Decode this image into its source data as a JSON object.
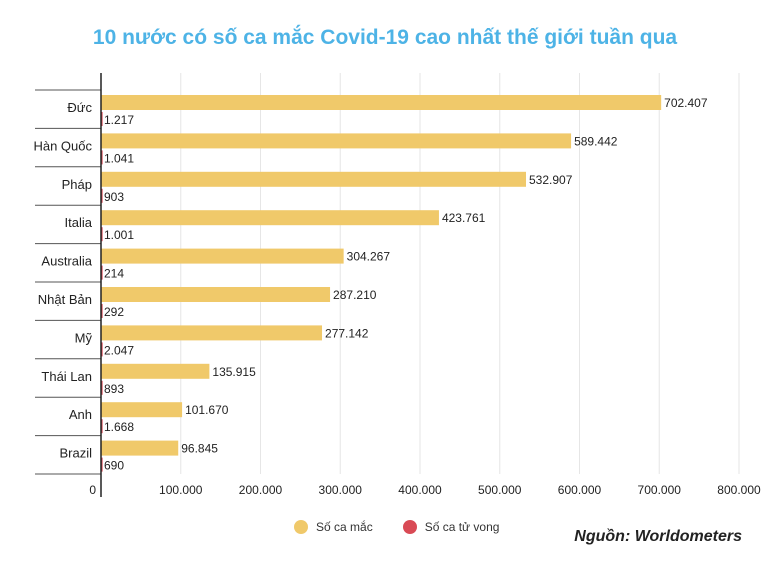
{
  "title": "10 nước có số ca mắc Covid-19 cao nhất thế giới tuần qua",
  "title_color": "#4db3e6",
  "source_label": "Nguồn: Worldometers",
  "chart_data": {
    "type": "bar",
    "orientation": "horizontal",
    "categories": [
      "Đức",
      "Hàn Quốc",
      "Pháp",
      "Italia",
      "Australia",
      "Nhật Bản",
      "Mỹ",
      "Thái Lan",
      "Anh",
      "Brazil"
    ],
    "series": [
      {
        "name": "Số ca mắc",
        "color": "#f0c96a",
        "values": [
          702407,
          589442,
          532907,
          423761,
          304267,
          287210,
          277142,
          135915,
          101670,
          96845
        ],
        "labels": [
          "702.407",
          "589.442",
          "532.907",
          "423.761",
          "304.267",
          "287.210",
          "277.142",
          "135.915",
          "101.670",
          "96.845"
        ]
      },
      {
        "name": "Số ca tử vong",
        "color": "#d94a55",
        "values": [
          1217,
          1041,
          903,
          1001,
          214,
          292,
          2047,
          893,
          1668,
          690
        ],
        "labels": [
          "1.217",
          "1.041",
          "903",
          "1.001",
          "214",
          "292",
          "2.047",
          "893",
          "1.668",
          "690"
        ]
      }
    ],
    "xlim": [
      0,
      800000
    ],
    "xticks": [
      {
        "value": 0,
        "label": "0"
      },
      {
        "value": 100000,
        "label": "100.000"
      },
      {
        "value": 200000,
        "label": "200.000"
      },
      {
        "value": 300000,
        "label": "300.000"
      },
      {
        "value": 400000,
        "label": "400.000"
      },
      {
        "value": 500000,
        "label": "500.000"
      },
      {
        "value": 600000,
        "label": "600.000"
      },
      {
        "value": 700000,
        "label": "700.000"
      },
      {
        "value": 800000,
        "label": "800.000"
      }
    ],
    "grid": true,
    "legend_position": "bottom"
  }
}
